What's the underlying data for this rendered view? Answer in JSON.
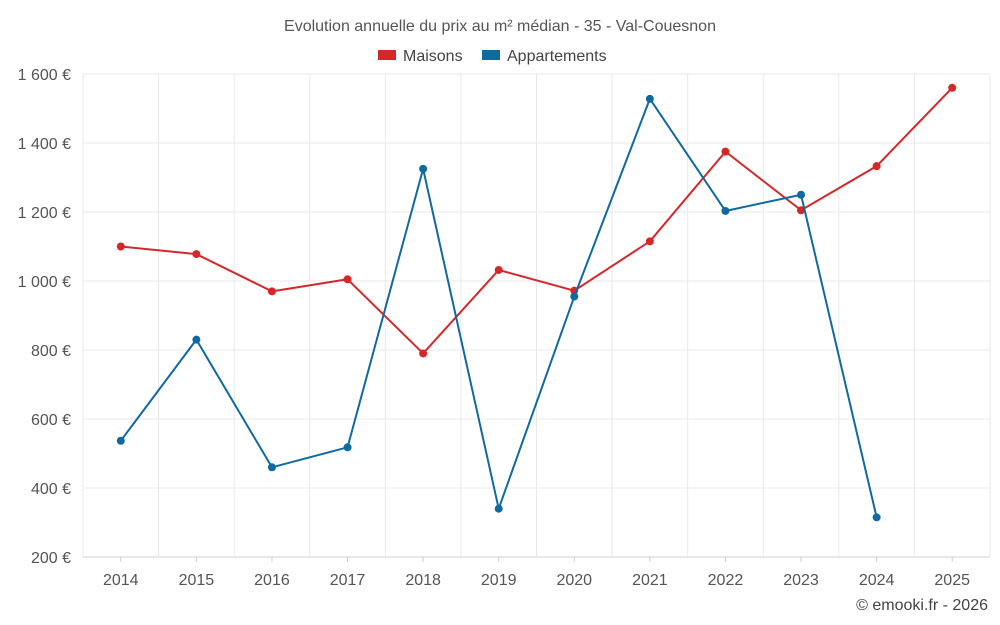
{
  "chart_data": {
    "type": "line",
    "title": "Evolution annuelle du prix au m² médian - 35 - Val-Couesnon",
    "x": [
      "2014",
      "2015",
      "2016",
      "2017",
      "2018",
      "2019",
      "2020",
      "2021",
      "2022",
      "2023",
      "2024",
      "2025"
    ],
    "series": [
      {
        "name": "Maisons",
        "color": "#d62728",
        "values": [
          1100,
          1078,
          970,
          1005,
          790,
          1032,
          972,
          1115,
          1375,
          1205,
          1333,
          1560
        ]
      },
      {
        "name": "Appartements",
        "color": "#0f6aa0",
        "values": [
          537,
          830,
          460,
          518,
          1325,
          340,
          955,
          1528,
          1203,
          1250,
          315,
          null
        ]
      }
    ],
    "ylim": [
      200,
      1600
    ],
    "yticks": [
      200,
      400,
      600,
      800,
      1000,
      1200,
      1400,
      1600
    ],
    "ytick_labels": [
      "200 €",
      "400 €",
      "600 €",
      "800 €",
      "1 000 €",
      "1 200 €",
      "1 400 €",
      "1 600 €"
    ],
    "xlabel": "",
    "ylabel": "",
    "legend_position": "top-center",
    "grid": true
  },
  "credit": "© emooki.fr - 2026"
}
